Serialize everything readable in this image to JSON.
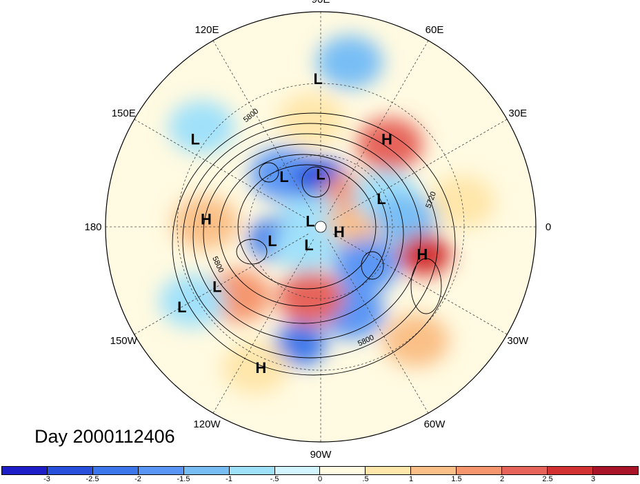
{
  "title": "Day 2000112406",
  "longitude_labels": [
    {
      "text": "90E",
      "lon": 90
    },
    {
      "text": "60E",
      "lon": 60
    },
    {
      "text": "30E",
      "lon": 30
    },
    {
      "text": "0",
      "lon": 0
    },
    {
      "text": "30W",
      "lon": -30
    },
    {
      "text": "60W",
      "lon": -60
    },
    {
      "text": "90W",
      "lon": -90
    },
    {
      "text": "120W",
      "lon": -120
    },
    {
      "text": "150W",
      "lon": -150
    },
    {
      "text": "180",
      "lon": 180
    },
    {
      "text": "150E",
      "lon": 150
    },
    {
      "text": "120E",
      "lon": 120
    }
  ],
  "pressure_centers": [
    {
      "type": "L",
      "lon": 91,
      "lat": 28
    },
    {
      "type": "H",
      "lon": 53,
      "lat": 44
    },
    {
      "type": "L",
      "lon": 145,
      "lat": 26
    },
    {
      "type": "L",
      "lon": 126,
      "lat": 64
    },
    {
      "type": "L",
      "lon": 90,
      "lat": 68
    },
    {
      "type": "L",
      "lon": 25,
      "lat": 62
    },
    {
      "type": "L",
      "lon": 150,
      "lat": 85
    },
    {
      "type": "H",
      "lon": 176,
      "lat": 42
    },
    {
      "type": "L",
      "lon": -164,
      "lat": 69
    },
    {
      "type": "H",
      "lon": -15,
      "lat": 82
    },
    {
      "type": "L",
      "lon": -123,
      "lat": 81
    },
    {
      "type": "H",
      "lon": -15,
      "lat": 46
    },
    {
      "type": "L",
      "lon": -150,
      "lat": 40
    },
    {
      "type": "L",
      "lon": -150,
      "lat": 23
    },
    {
      "type": "H",
      "lon": -113,
      "lat": 26
    }
  ],
  "contour_labels": [
    "5800",
    "5800",
    "5800",
    "5720"
  ],
  "colorbar": {
    "colors": [
      "#1e1ec8",
      "#2850dc",
      "#3c78eb",
      "#5a96f5",
      "#78bef5",
      "#a0e1fa",
      "#d2f5ff",
      "#fffae1",
      "#ffe6aa",
      "#fac087",
      "#f5966e",
      "#e6645a",
      "#d23232",
      "#aa1428"
    ],
    "tick_labels": [
      "-3",
      "-2.5",
      "-2",
      "-1.5",
      "-1",
      "-.5",
      "0",
      ".5",
      "1",
      "1.5",
      "2",
      "2.5",
      "3"
    ]
  },
  "chart_data": {
    "type": "heatmap",
    "title": "Day 2000112406",
    "projection": "north polar stereographic",
    "color_levels": [
      -3,
      -2.5,
      -2,
      -1.5,
      -1,
      -0.5,
      0,
      0.5,
      1,
      1.5,
      2,
      2.5,
      3
    ],
    "contour_values": [
      5800,
      5720
    ],
    "anomalies": [
      {
        "lon": 50,
        "lat": 45,
        "value": 2.0
      },
      {
        "lon": 95,
        "lat": 45,
        "value": 0.8
      },
      {
        "lon": 10,
        "lat": 30,
        "value": 0.7
      },
      {
        "lon": 80,
        "lat": 20,
        "value": -1.2
      },
      {
        "lon": 140,
        "lat": 25,
        "value": -0.8
      },
      {
        "lon": 125,
        "lat": 63,
        "value": -1.8
      },
      {
        "lon": 90,
        "lat": 70,
        "value": -2.8
      },
      {
        "lon": 40,
        "lat": 73,
        "value": 1.5
      },
      {
        "lon": 25,
        "lat": 60,
        "value": -0.7
      },
      {
        "lon": 5,
        "lat": 55,
        "value": -1.3
      },
      {
        "lon": 150,
        "lat": 85,
        "value": -0.6
      },
      {
        "lon": 178,
        "lat": 42,
        "value": 1.0
      },
      {
        "lon": -165,
        "lat": 70,
        "value": -2.5
      },
      {
        "lon": -20,
        "lat": 78,
        "value": 1.3
      },
      {
        "lon": -130,
        "lat": 80,
        "value": -0.8
      },
      {
        "lon": -15,
        "lat": 45,
        "value": 2.7
      },
      {
        "lon": -40,
        "lat": 65,
        "value": -1.8
      },
      {
        "lon": -70,
        "lat": 52,
        "value": -2.0
      },
      {
        "lon": -100,
        "lat": 40,
        "value": -2.2
      },
      {
        "lon": -98,
        "lat": 60,
        "value": 2.0
      },
      {
        "lon": -140,
        "lat": 45,
        "value": 1.5
      },
      {
        "lon": -150,
        "lat": 28,
        "value": -0.8
      },
      {
        "lon": -115,
        "lat": 25,
        "value": 0.8
      },
      {
        "lon": -50,
        "lat": 28,
        "value": 1.2
      }
    ]
  }
}
